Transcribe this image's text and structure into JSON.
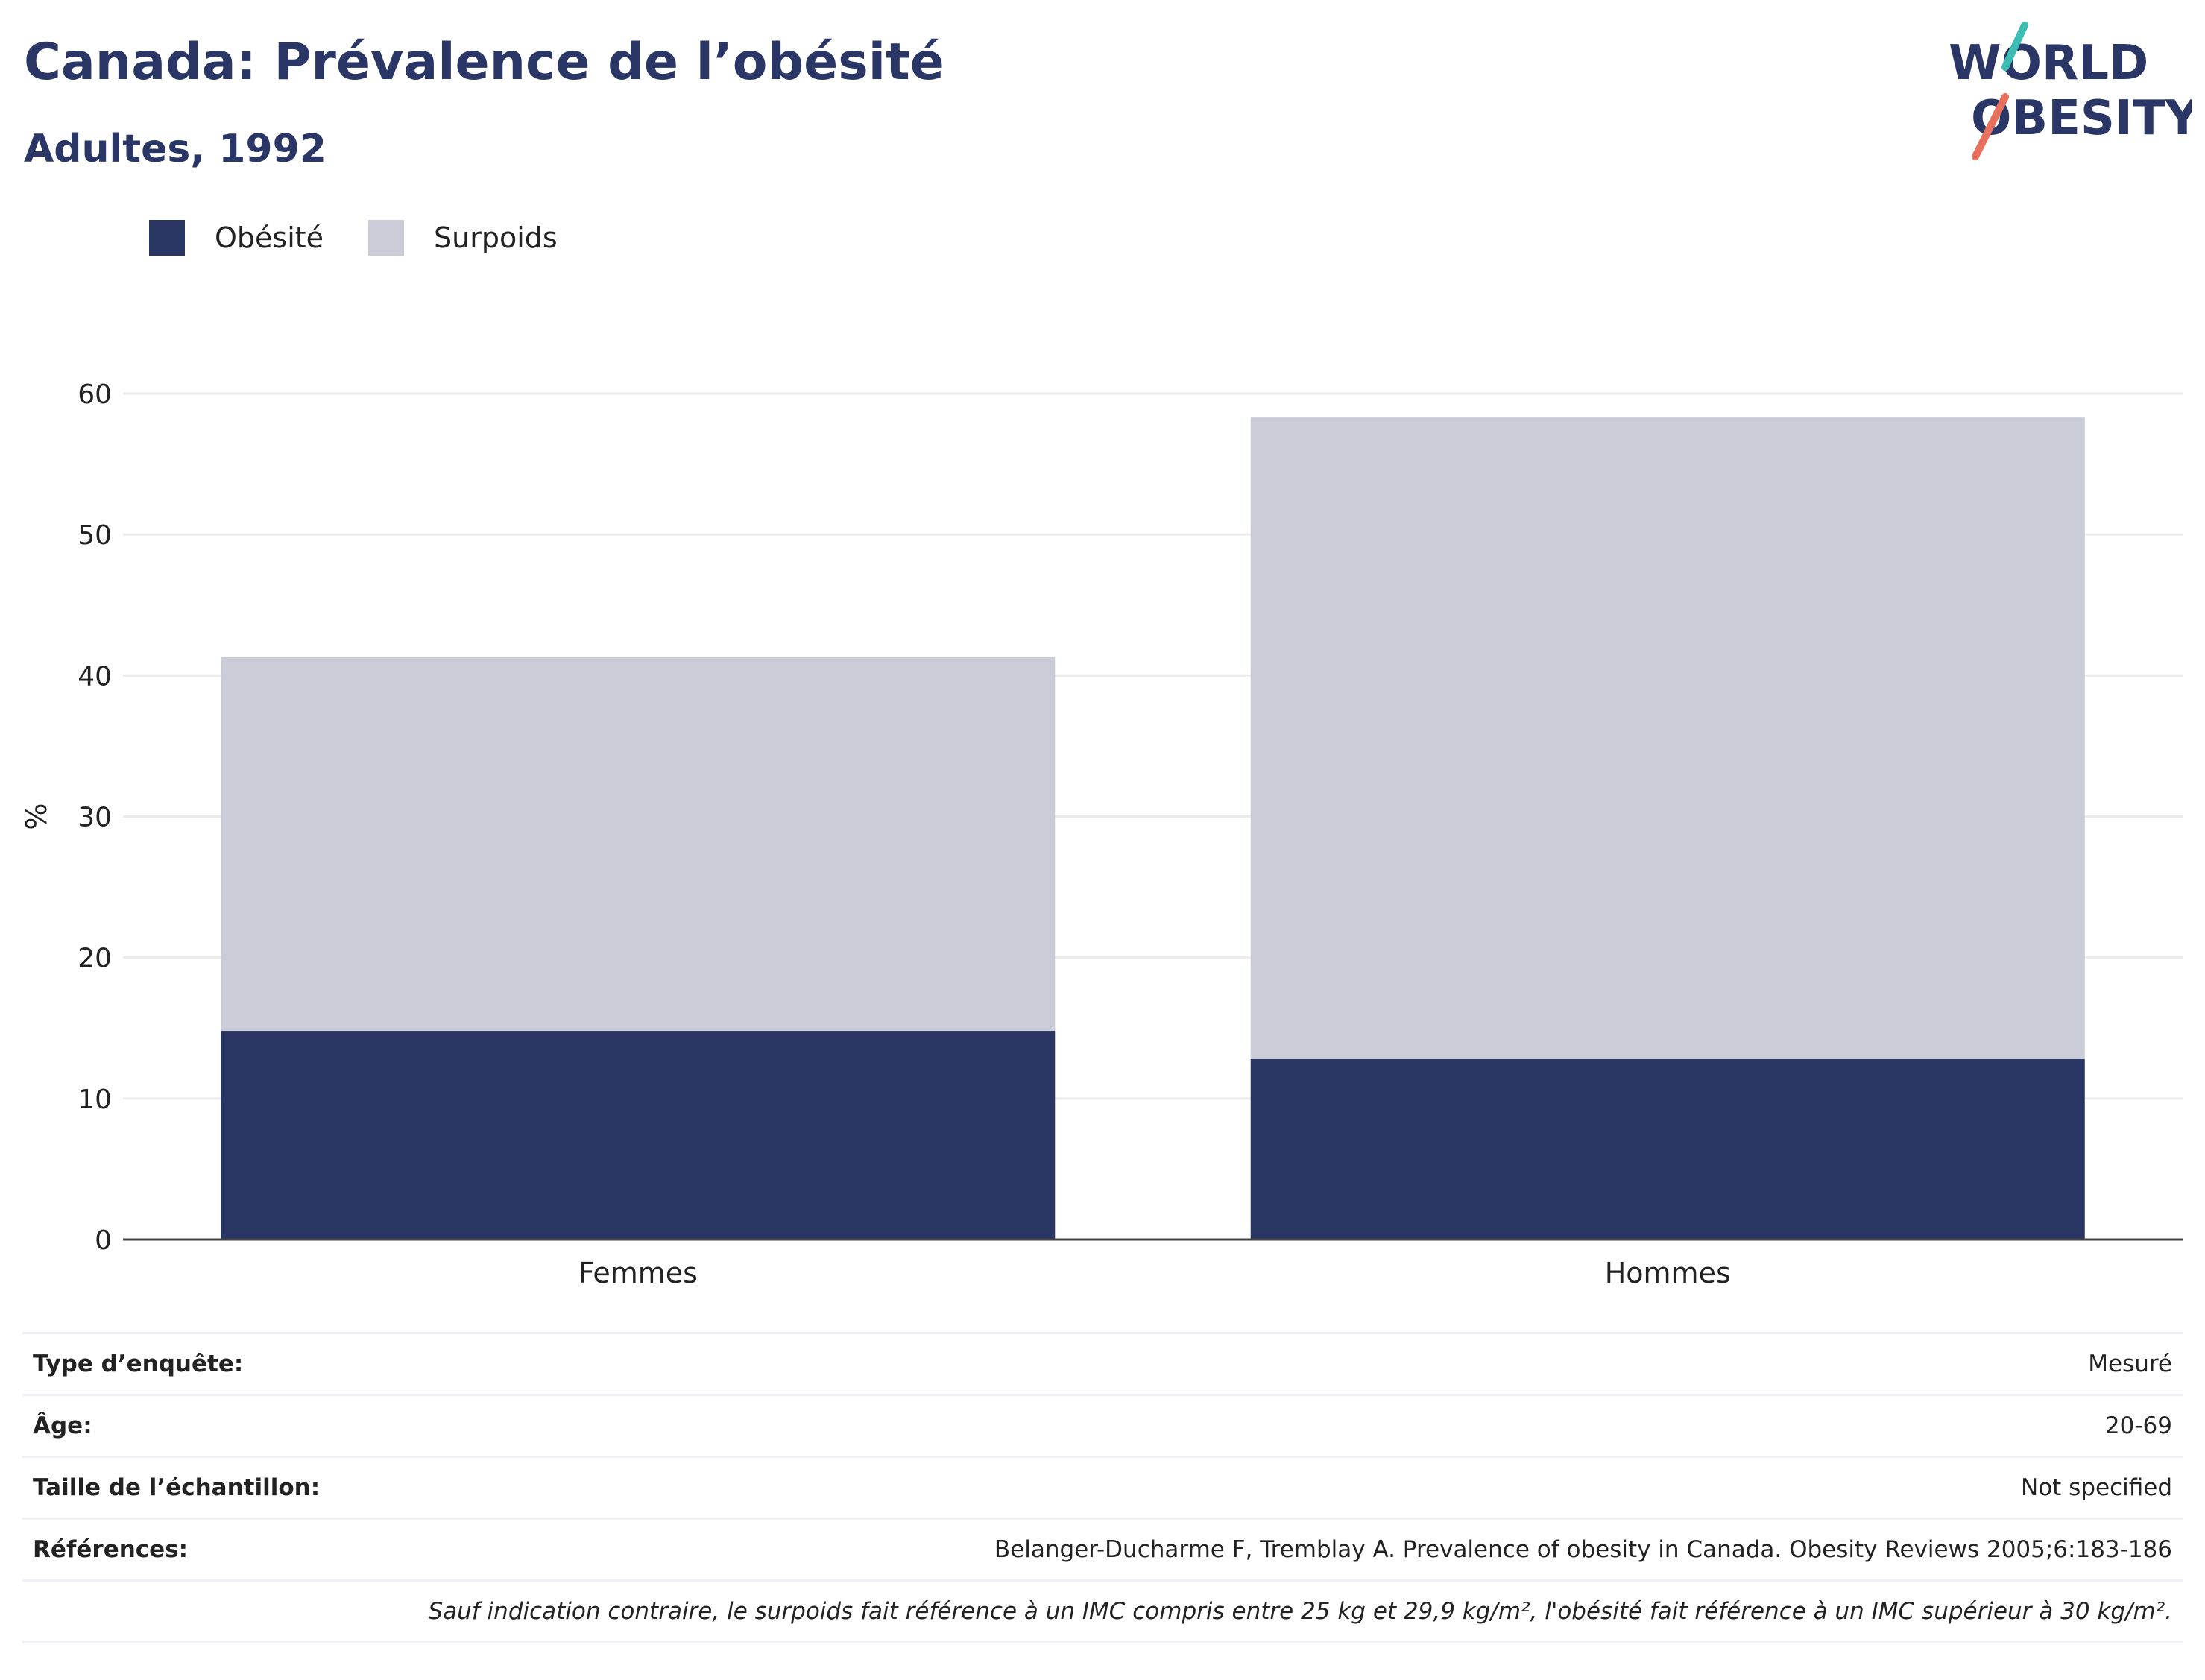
{
  "header": {
    "title": "Canada: Prévalence de l’obésité",
    "subtitle": "Adultes, 1992",
    "logo_text": [
      "WORLD",
      "OBESITY"
    ]
  },
  "legend": [
    {
      "label": "Obésité",
      "color": "#293664"
    },
    {
      "label": "Surpoids",
      "color": "#caccd8"
    }
  ],
  "chart_data": {
    "type": "bar",
    "stacked": true,
    "categories": [
      "Femmes",
      "Hommes"
    ],
    "series": [
      {
        "name": "Obésité",
        "color": "#293664",
        "values": [
          14.8,
          12.8
        ]
      },
      {
        "name": "Surpoids",
        "color": "#caccd8",
        "values": [
          26.5,
          45.5
        ]
      }
    ],
    "ylabel": "%",
    "ylim": [
      0,
      60
    ],
    "yticks": [
      0,
      10,
      20,
      30,
      40,
      50,
      60
    ],
    "grid": true
  },
  "meta": {
    "rows": [
      {
        "key": "Type d’enquête:",
        "value": "Mesuré"
      },
      {
        "key": "Âge:",
        "value": "20-69"
      },
      {
        "key": "Taille de l’échantillon:",
        "value": "Not specified"
      },
      {
        "key": "Références:",
        "value": "Belanger-Ducharme F, Tremblay A. Prevalence of obesity in Canada. Obesity Reviews 2005;6:183-186"
      }
    ],
    "note": "Sauf indication contraire, le surpoids fait référence à un IMC compris entre 25 kg et 29,9 kg/m², l'obésité fait référence à un IMC supérieur à 30 kg/m²."
  }
}
